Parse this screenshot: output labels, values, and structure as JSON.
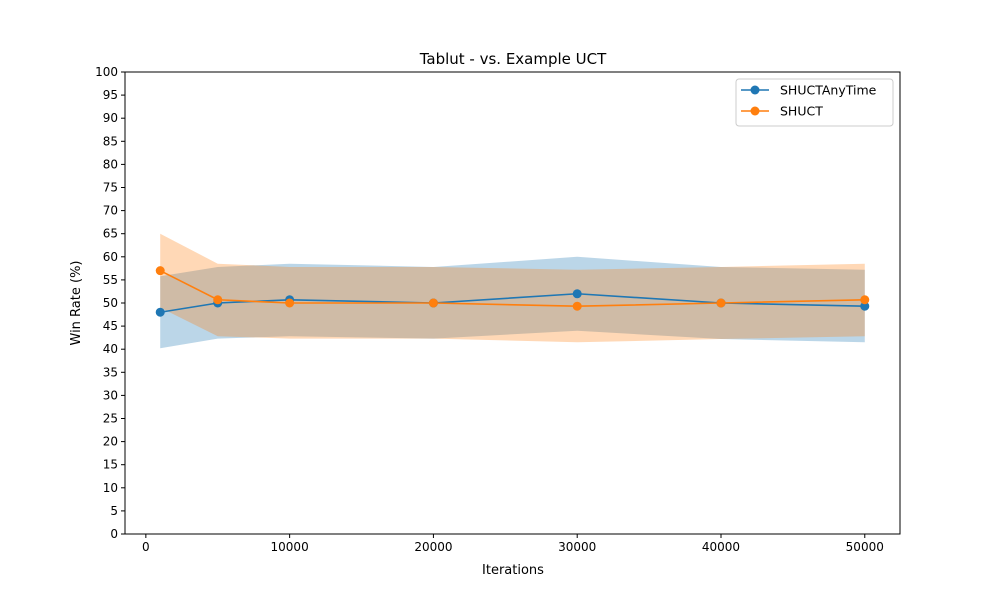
{
  "chart_data": {
    "type": "line",
    "title": "Tablut - vs. Example UCT",
    "xlabel": "Iterations",
    "ylabel": "Win Rate (%)",
    "xlim": [
      -1450,
      52450
    ],
    "ylim": [
      0,
      100
    ],
    "x_ticks": [
      0,
      10000,
      20000,
      30000,
      40000,
      50000
    ],
    "y_ticks": [
      0,
      5,
      10,
      15,
      20,
      25,
      30,
      35,
      40,
      45,
      50,
      55,
      60,
      65,
      70,
      75,
      80,
      85,
      90,
      95,
      100
    ],
    "grid": false,
    "legend_position": "top-right",
    "series": [
      {
        "name": "SHUCTAnyTime",
        "color": "#1f77b4",
        "band_color": "#1f77b4",
        "x": [
          1000,
          5000,
          10000,
          20000,
          30000,
          40000,
          50000
        ],
        "values": [
          48,
          50,
          50.7,
          50,
          52,
          50,
          49.3
        ],
        "lower": [
          40.2,
          42.3,
          42.8,
          42.3,
          44,
          42.2,
          41.5
        ],
        "upper": [
          55.8,
          57.8,
          58.5,
          57.8,
          60,
          57.8,
          57.2
        ]
      },
      {
        "name": "SHUCT",
        "color": "#ff7f0e",
        "band_color": "#ff7f0e",
        "x": [
          1000,
          5000,
          10000,
          20000,
          30000,
          40000,
          50000
        ],
        "values": [
          57,
          50.7,
          50,
          50,
          49.3,
          50,
          50.7
        ],
        "lower": [
          49,
          42.8,
          42.3,
          42.3,
          41.5,
          42.2,
          42.8
        ],
        "upper": [
          65,
          58.5,
          57.8,
          57.8,
          57.2,
          57.8,
          58.5
        ]
      }
    ]
  }
}
